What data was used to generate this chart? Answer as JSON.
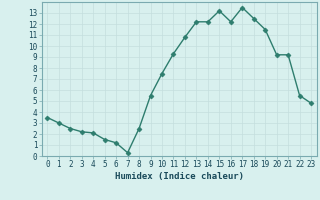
{
  "x": [
    0,
    1,
    2,
    3,
    4,
    5,
    6,
    7,
    8,
    9,
    10,
    11,
    12,
    13,
    14,
    15,
    16,
    17,
    18,
    19,
    20,
    21,
    22,
    23
  ],
  "y": [
    3.5,
    3.0,
    2.5,
    2.2,
    2.1,
    1.5,
    1.2,
    0.3,
    2.5,
    5.5,
    7.5,
    9.3,
    10.8,
    12.2,
    12.2,
    13.2,
    12.2,
    13.5,
    12.5,
    11.5,
    9.2,
    9.2,
    5.5,
    4.8
  ],
  "line_color": "#2e7d6e",
  "marker": "D",
  "bg_color": "#d8f0ee",
  "grid_color": "#c4dede",
  "xlabel": "Humidex (Indice chaleur)",
  "xlim": [
    -0.5,
    23.5
  ],
  "ylim": [
    0,
    14
  ],
  "yticks": [
    0,
    1,
    2,
    3,
    4,
    5,
    6,
    7,
    8,
    9,
    10,
    11,
    12,
    13
  ],
  "xticks": [
    0,
    1,
    2,
    3,
    4,
    5,
    6,
    7,
    8,
    9,
    10,
    11,
    12,
    13,
    14,
    15,
    16,
    17,
    18,
    19,
    20,
    21,
    22,
    23
  ],
  "font_color": "#1a4a5a",
  "linewidth": 1.0,
  "markersize": 2.5,
  "tick_fontsize": 5.5,
  "xlabel_fontsize": 6.5,
  "grid_linewidth": 0.5,
  "spine_color": "#7aaab0"
}
